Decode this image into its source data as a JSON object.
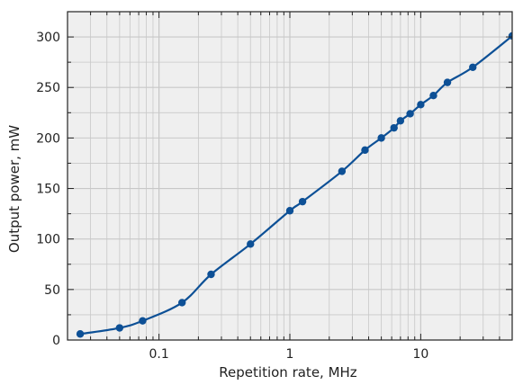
{
  "chart_data": {
    "type": "line",
    "title": "",
    "xlabel": "Repetition rate, MHz",
    "ylabel": "Output power, mW",
    "xscale": "log",
    "xlim": [
      0.02,
      50
    ],
    "ylim": [
      0,
      325
    ],
    "xticks": [
      {
        "value": 0.1,
        "label": "0.1"
      },
      {
        "value": 1,
        "label": "1"
      },
      {
        "value": 10,
        "label": "10"
      }
    ],
    "yticks": [
      {
        "value": 0,
        "label": "0"
      },
      {
        "value": 50,
        "label": "50"
      },
      {
        "value": 100,
        "label": "100"
      },
      {
        "value": 150,
        "label": "150"
      },
      {
        "value": 200,
        "label": "200"
      },
      {
        "value": 250,
        "label": "250"
      },
      {
        "value": 300,
        "label": "300"
      }
    ],
    "grid": true,
    "series": [
      {
        "color": "#0d5096",
        "points": [
          {
            "x": 0.025,
            "y": 6
          },
          {
            "x": 0.05,
            "y": 12
          },
          {
            "x": 0.075,
            "y": 19
          },
          {
            "x": 0.15,
            "y": 37
          },
          {
            "x": 0.25,
            "y": 65
          },
          {
            "x": 0.5,
            "y": 95
          },
          {
            "x": 1.0,
            "y": 128
          },
          {
            "x": 1.25,
            "y": 137
          },
          {
            "x": 2.5,
            "y": 167
          },
          {
            "x": 3.75,
            "y": 188
          },
          {
            "x": 5.0,
            "y": 200
          },
          {
            "x": 6.25,
            "y": 210
          },
          {
            "x": 7.0,
            "y": 217
          },
          {
            "x": 8.3,
            "y": 224
          },
          {
            "x": 10.0,
            "y": 233
          },
          {
            "x": 12.5,
            "y": 242
          },
          {
            "x": 16.0,
            "y": 255
          },
          {
            "x": 25.0,
            "y": 270
          },
          {
            "x": 50.0,
            "y": 301
          }
        ]
      }
    ]
  },
  "colors": {
    "plot_background": "#efefef",
    "grid": "#c8c8c8",
    "series": "#0d5096"
  }
}
